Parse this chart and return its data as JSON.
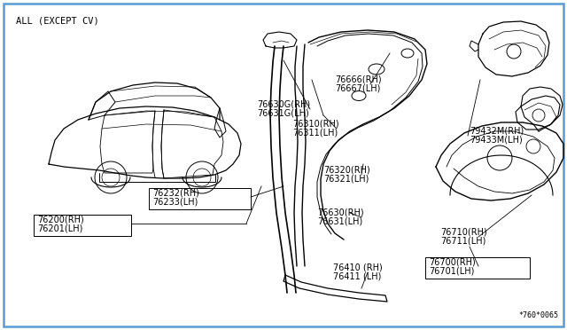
{
  "background_color": "#ffffff",
  "border_color": "#5b9bd5",
  "title_text": "ALL (EXCEPT CV)",
  "diagram_code": "*760*0065",
  "fig_width": 6.4,
  "fig_height": 3.72,
  "dpi": 100,
  "xlim": [
    0,
    640
  ],
  "ylim": [
    0,
    372
  ]
}
